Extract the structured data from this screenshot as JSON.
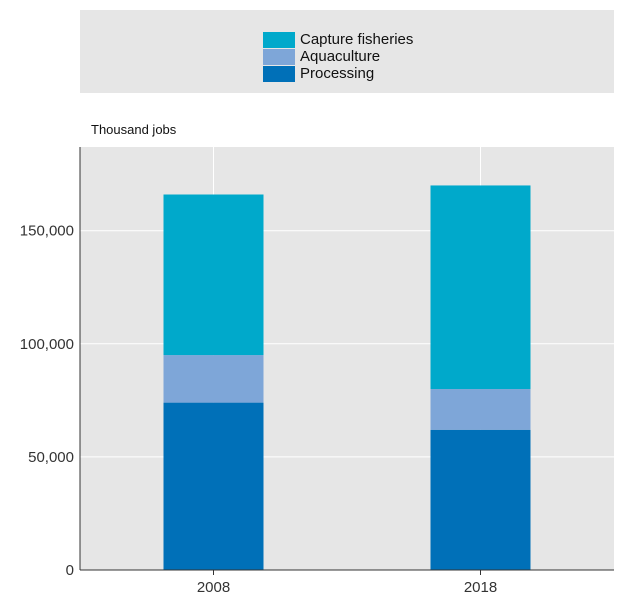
{
  "chart_data": {
    "type": "bar",
    "stacked": true,
    "unit_label": "Thousand jobs",
    "categories": [
      "2008",
      "2018"
    ],
    "series": [
      {
        "name": "Processing",
        "color": "#0070b8",
        "values": [
          74000,
          62000
        ]
      },
      {
        "name": "Aquaculture",
        "color": "#7ea6d8",
        "values": [
          21000,
          18000
        ]
      },
      {
        "name": "Capture fisheries",
        "color": "#00a9cb",
        "values": [
          71000,
          90000
        ]
      }
    ],
    "legend_order": [
      "Capture fisheries",
      "Aquaculture",
      "Processing"
    ],
    "ylim": [
      0,
      187000
    ],
    "yticks": [
      0,
      50000,
      100000,
      150000
    ],
    "ytick_labels": [
      "0",
      "50,000",
      "100,000",
      "150,000"
    ],
    "grid": true,
    "legend_position": "top",
    "colors": {
      "plot_background": "#e6e6e6",
      "gridline": "#ffffff",
      "axis": "#333333"
    }
  }
}
